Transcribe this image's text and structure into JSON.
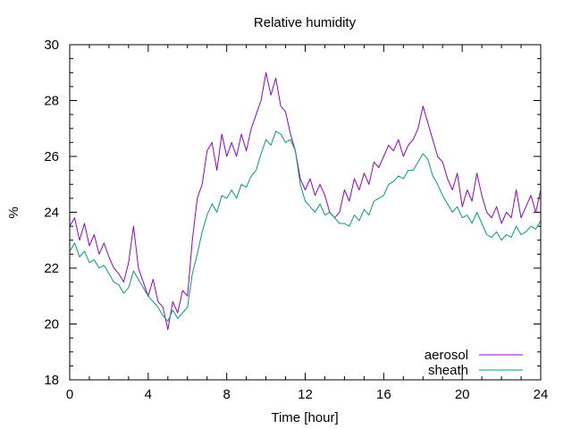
{
  "chart_data": {
    "type": "line",
    "title": "Relative humidity",
    "xlabel": "Time [hour]",
    "ylabel": "%",
    "xlim": [
      0,
      24
    ],
    "ylim": [
      18,
      30
    ],
    "xticks": [
      0,
      4,
      8,
      12,
      16,
      20,
      24
    ],
    "yticks": [
      18,
      20,
      22,
      24,
      26,
      28,
      30
    ],
    "grid": false,
    "legend_position": "bottom-right",
    "series": [
      {
        "name": "aerosol",
        "color": "#9400d3",
        "x": [
          0,
          0.25,
          0.5,
          0.75,
          1,
          1.25,
          1.5,
          1.75,
          2,
          2.25,
          2.5,
          2.75,
          3,
          3.25,
          3.5,
          3.75,
          4,
          4.25,
          4.5,
          4.75,
          5,
          5.25,
          5.5,
          5.75,
          6,
          6.25,
          6.5,
          6.75,
          7,
          7.25,
          7.5,
          7.75,
          8,
          8.25,
          8.5,
          8.75,
          9,
          9.25,
          9.5,
          9.75,
          10,
          10.25,
          10.5,
          10.75,
          11,
          11.25,
          11.5,
          11.75,
          12,
          12.25,
          12.5,
          12.75,
          13,
          13.25,
          13.5,
          13.75,
          14,
          14.25,
          14.5,
          14.75,
          15,
          15.25,
          15.5,
          15.75,
          16,
          16.25,
          16.5,
          16.75,
          17,
          17.25,
          17.5,
          17.75,
          18,
          18.25,
          18.5,
          18.75,
          19,
          19.25,
          19.5,
          19.75,
          20,
          20.25,
          20.5,
          20.75,
          21,
          21.25,
          21.5,
          21.75,
          22,
          22.25,
          22.5,
          22.75,
          23,
          23.25,
          23.5,
          23.75,
          24
        ],
        "y": [
          23.5,
          23.8,
          23.0,
          23.6,
          22.8,
          23.2,
          22.5,
          22.9,
          22.4,
          22.0,
          21.8,
          21.5,
          22.2,
          23.5,
          22.0,
          21.5,
          21.0,
          21.6,
          20.8,
          20.6,
          19.8,
          20.8,
          20.4,
          21.2,
          21.0,
          23.0,
          24.5,
          25.0,
          26.2,
          26.5,
          25.5,
          26.8,
          26.0,
          26.5,
          26.0,
          26.8,
          26.2,
          27.0,
          27.5,
          28.0,
          29.0,
          28.2,
          28.8,
          27.8,
          27.6,
          26.8,
          26.2,
          25.2,
          24.8,
          25.2,
          24.6,
          25.0,
          24.6,
          24.0,
          23.8,
          24.0,
          24.8,
          24.4,
          25.2,
          24.8,
          25.4,
          25.0,
          25.8,
          25.6,
          26.0,
          26.4,
          26.2,
          26.6,
          26.0,
          26.4,
          26.6,
          27.0,
          27.8,
          27.2,
          26.6,
          26.0,
          25.8,
          25.2,
          24.8,
          25.4,
          24.2,
          24.8,
          24.4,
          25.4,
          24.6,
          24.0,
          23.8,
          24.2,
          23.6,
          24.0,
          23.8,
          24.8,
          23.8,
          24.2,
          24.6,
          24.0,
          24.8
        ]
      },
      {
        "name": "sheath",
        "color": "#009e73",
        "x": [
          0,
          0.25,
          0.5,
          0.75,
          1,
          1.25,
          1.5,
          1.75,
          2,
          2.25,
          2.5,
          2.75,
          3,
          3.25,
          3.5,
          3.75,
          4,
          4.25,
          4.5,
          4.75,
          5,
          5.25,
          5.5,
          5.75,
          6,
          6.25,
          6.5,
          6.75,
          7,
          7.25,
          7.5,
          7.75,
          8,
          8.25,
          8.5,
          8.75,
          9,
          9.25,
          9.5,
          9.75,
          10,
          10.25,
          10.5,
          10.75,
          11,
          11.25,
          11.5,
          11.75,
          12,
          12.25,
          12.5,
          12.75,
          13,
          13.25,
          13.5,
          13.75,
          14,
          14.25,
          14.5,
          14.75,
          15,
          15.25,
          15.5,
          15.75,
          16,
          16.25,
          16.5,
          16.75,
          17,
          17.25,
          17.5,
          17.75,
          18,
          18.25,
          18.5,
          18.75,
          19,
          19.25,
          19.5,
          19.75,
          20,
          20.25,
          20.5,
          20.75,
          21,
          21.25,
          21.5,
          21.75,
          22,
          22.25,
          22.5,
          22.75,
          23,
          23.25,
          23.5,
          23.75,
          24
        ],
        "y": [
          22.6,
          22.9,
          22.4,
          22.6,
          22.2,
          22.3,
          22.0,
          22.1,
          21.8,
          21.5,
          21.4,
          21.1,
          21.3,
          21.9,
          21.6,
          21.3,
          21.0,
          20.8,
          20.6,
          20.3,
          20.1,
          20.5,
          20.2,
          20.4,
          20.6,
          21.8,
          22.5,
          23.3,
          23.9,
          24.3,
          24.0,
          24.6,
          24.5,
          24.8,
          24.5,
          25.0,
          24.9,
          25.3,
          25.5,
          26.1,
          26.6,
          26.4,
          26.9,
          26.8,
          26.5,
          26.6,
          26.2,
          25.0,
          24.4,
          24.2,
          24.0,
          24.3,
          23.9,
          24.0,
          23.8,
          23.6,
          23.6,
          23.5,
          23.9,
          23.7,
          24.1,
          23.9,
          24.4,
          24.5,
          24.6,
          25.0,
          25.1,
          25.3,
          25.2,
          25.5,
          25.5,
          25.8,
          26.1,
          25.9,
          25.3,
          25.0,
          24.6,
          24.3,
          24.0,
          24.2,
          23.8,
          23.9,
          23.6,
          24.0,
          23.6,
          23.2,
          23.1,
          23.3,
          23.0,
          23.2,
          23.1,
          23.5,
          23.2,
          23.3,
          23.5,
          23.4,
          23.7
        ]
      }
    ]
  }
}
